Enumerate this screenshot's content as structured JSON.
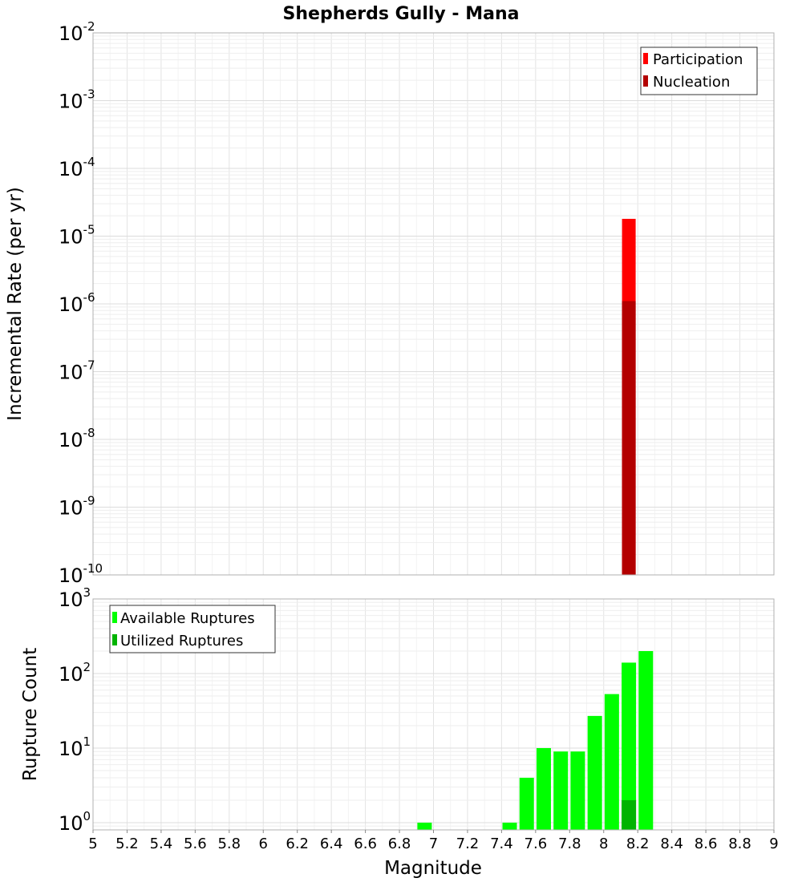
{
  "chart_data": [
    {
      "type": "bar",
      "title": "Shepherds Gully - Mana",
      "xlabel": "Magnitude",
      "ylabel": "Incremental Rate (per yr)",
      "yscale": "log",
      "xlim": [
        5,
        9
      ],
      "ylim": [
        1e-10,
        0.01
      ],
      "grid": true,
      "legend_position": "top-right",
      "series": [
        {
          "name": "Participation",
          "color": "#ff0000",
          "points": [
            {
              "x": 8.15,
              "y": 1.8e-05
            }
          ]
        },
        {
          "name": "Nucleation",
          "color": "#b30000",
          "points": [
            {
              "x": 8.15,
              "y": 1.1e-06
            }
          ]
        }
      ],
      "y_ticks": [
        {
          "base": "10",
          "exp": "-2"
        },
        {
          "base": "10",
          "exp": "-3"
        },
        {
          "base": "10",
          "exp": "-4"
        },
        {
          "base": "10",
          "exp": "-5"
        },
        {
          "base": "10",
          "exp": "-6"
        },
        {
          "base": "10",
          "exp": "-7"
        },
        {
          "base": "10",
          "exp": "-8"
        },
        {
          "base": "10",
          "exp": "-9"
        },
        {
          "base": "10",
          "exp": "-10"
        }
      ]
    },
    {
      "type": "bar",
      "xlabel": "Magnitude",
      "ylabel": "Rupture Count",
      "yscale": "log",
      "xlim": [
        5,
        9
      ],
      "ylim": [
        0.8,
        1000
      ],
      "grid": true,
      "legend_position": "top-left",
      "series": [
        {
          "name": "Available Ruptures",
          "color": "#00ff00",
          "points": [
            {
              "x": 6.95,
              "y": 1
            },
            {
              "x": 7.45,
              "y": 1
            },
            {
              "x": 7.55,
              "y": 4
            },
            {
              "x": 7.65,
              "y": 10
            },
            {
              "x": 7.75,
              "y": 9
            },
            {
              "x": 7.85,
              "y": 9
            },
            {
              "x": 7.95,
              "y": 27
            },
            {
              "x": 8.05,
              "y": 53
            },
            {
              "x": 8.15,
              "y": 140
            },
            {
              "x": 8.25,
              "y": 200
            }
          ]
        },
        {
          "name": "Utilized Ruptures",
          "color": "#00b300",
          "points": [
            {
              "x": 8.15,
              "y": 2
            }
          ]
        }
      ],
      "y_ticks": [
        {
          "base": "10",
          "exp": "3"
        },
        {
          "base": "10",
          "exp": "2"
        },
        {
          "base": "10",
          "exp": "1"
        },
        {
          "base": "10",
          "exp": "0"
        }
      ],
      "x_ticks": [
        "5",
        "5.2",
        "5.4",
        "5.6",
        "5.8",
        "6",
        "6.2",
        "6.4",
        "6.6",
        "6.8",
        "7",
        "7.2",
        "7.4",
        "7.6",
        "7.8",
        "8",
        "8.2",
        "8.4",
        "8.6",
        "8.8",
        "9"
      ]
    }
  ]
}
